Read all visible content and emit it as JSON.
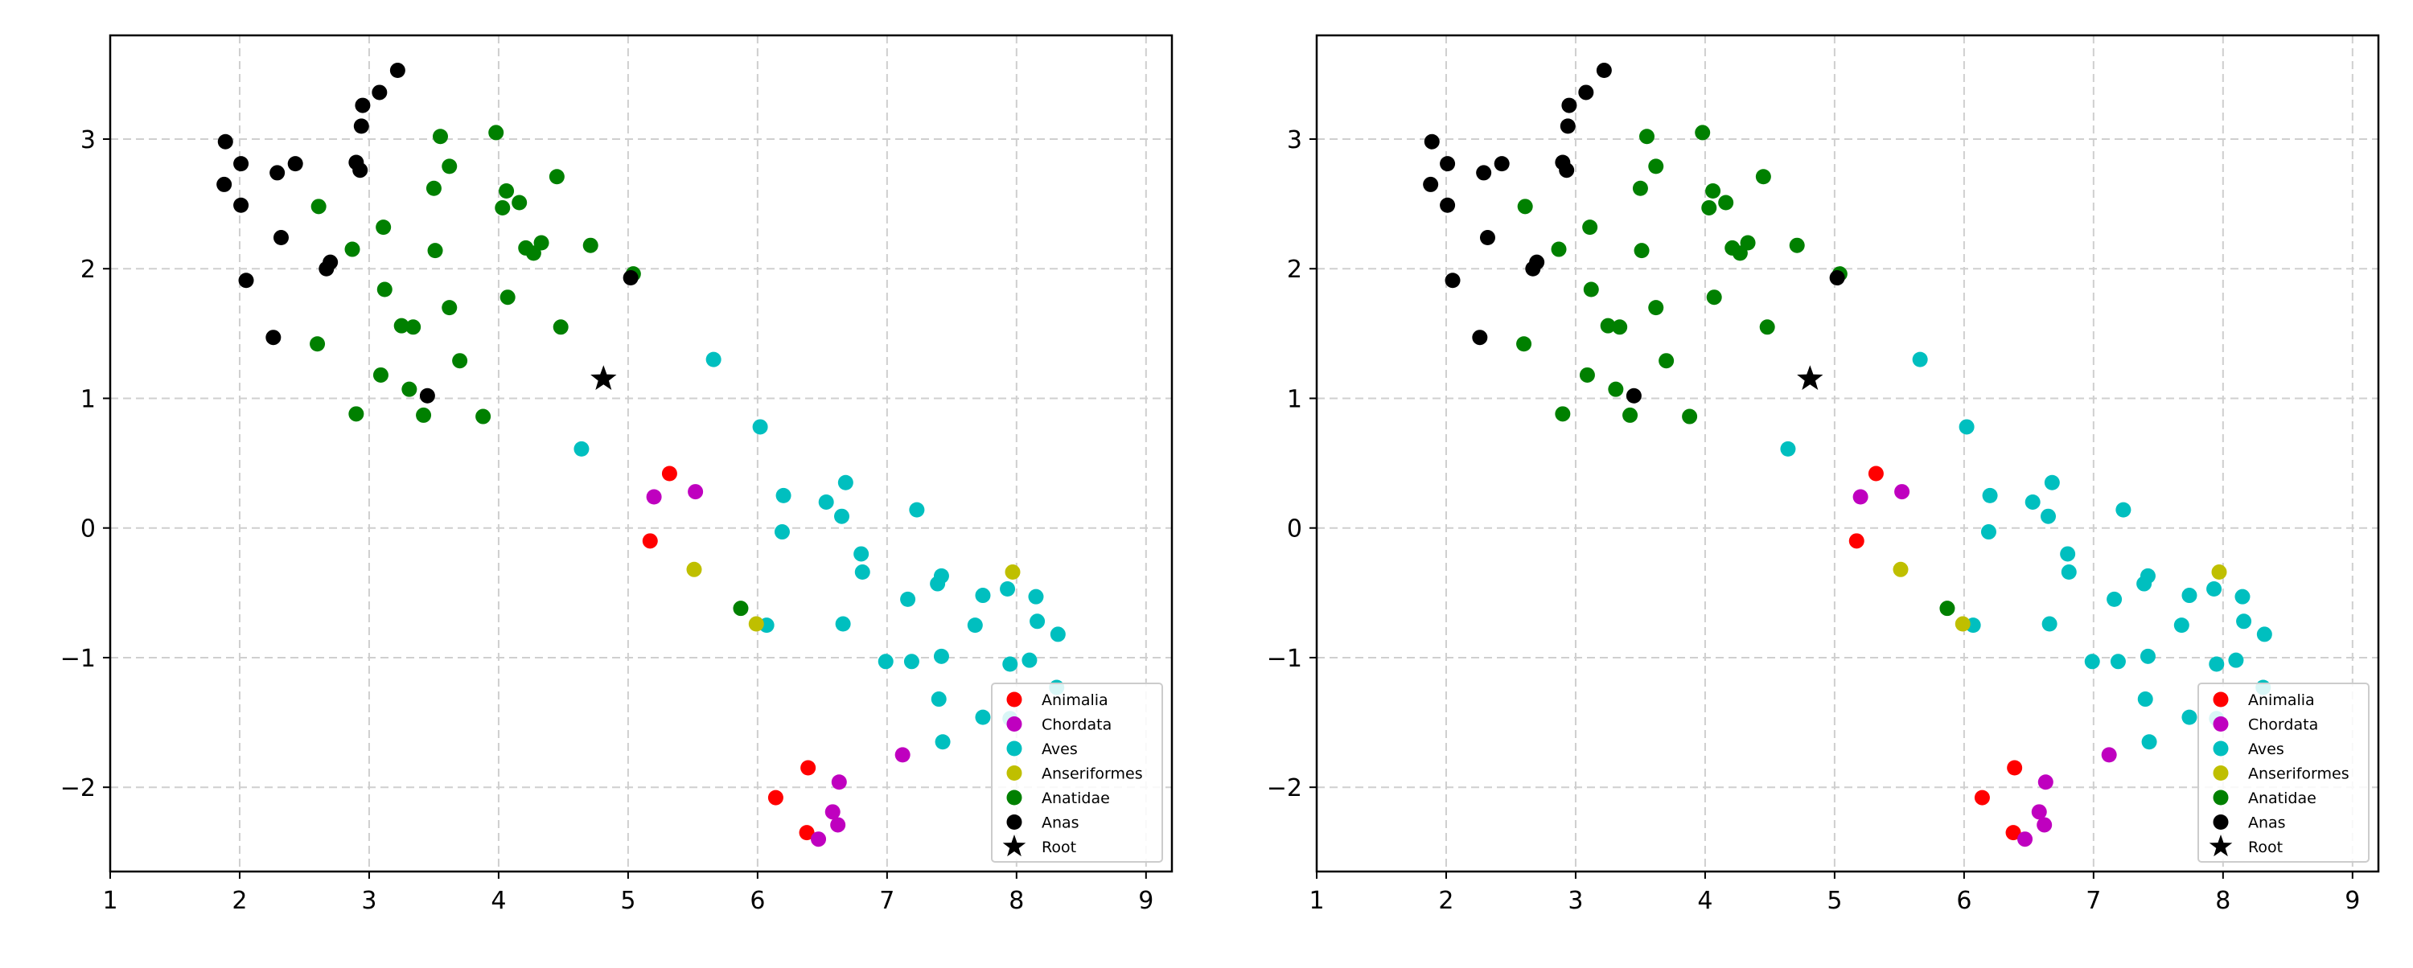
{
  "chart_data": [
    {
      "type": "scatter",
      "xlim": [
        1,
        9.2
      ],
      "ylim": [
        -2.65,
        3.8
      ],
      "xticks": [
        1,
        2,
        3,
        4,
        5,
        6,
        7,
        8,
        9
      ],
      "yticks": [
        -2,
        -1,
        0,
        1,
        2,
        3
      ],
      "grid": true,
      "legend_position": "lower-right",
      "series": [
        {
          "name": "Animalia",
          "color": "#ff0000",
          "marker": "circle",
          "points": [
            [
              5.32,
              0.42
            ],
            [
              5.17,
              -0.1
            ],
            [
              6.14,
              -2.08
            ],
            [
              6.39,
              -1.85
            ],
            [
              6.38,
              -2.35
            ]
          ]
        },
        {
          "name": "Chordata",
          "color": "#bf00bf",
          "marker": "circle",
          "points": [
            [
              5.2,
              0.24
            ],
            [
              5.52,
              0.28
            ],
            [
              6.63,
              -1.96
            ],
            [
              6.58,
              -2.19
            ],
            [
              6.62,
              -2.29
            ],
            [
              6.47,
              -2.4
            ],
            [
              7.12,
              -1.75
            ]
          ]
        },
        {
          "name": "Aves",
          "color": "#00bfbf",
          "marker": "circle",
          "points": [
            [
              5.66,
              1.3
            ],
            [
              4.64,
              0.61
            ],
            [
              6.02,
              0.78
            ],
            [
              6.2,
              0.25
            ],
            [
              6.19,
              -0.03
            ],
            [
              6.53,
              0.2
            ],
            [
              6.68,
              0.35
            ],
            [
              6.65,
              0.09
            ],
            [
              6.8,
              -0.2
            ],
            [
              6.81,
              -0.34
            ],
            [
              7.23,
              0.14
            ],
            [
              7.42,
              -0.37
            ],
            [
              7.39,
              -0.43
            ],
            [
              7.16,
              -0.55
            ],
            [
              6.07,
              -0.75
            ],
            [
              6.66,
              -0.74
            ],
            [
              6.99,
              -1.03
            ],
            [
              7.19,
              -1.03
            ],
            [
              7.42,
              -0.99
            ],
            [
              7.4,
              -1.32
            ],
            [
              7.43,
              -1.65
            ],
            [
              7.74,
              -0.52
            ],
            [
              7.93,
              -0.47
            ],
            [
              8.15,
              -0.53
            ],
            [
              7.68,
              -0.75
            ],
            [
              8.16,
              -0.72
            ],
            [
              8.32,
              -0.82
            ],
            [
              7.95,
              -1.05
            ],
            [
              8.1,
              -1.02
            ],
            [
              8.31,
              -1.23
            ],
            [
              7.74,
              -1.46
            ],
            [
              7.95,
              -1.47
            ]
          ]
        },
        {
          "name": "Anseriformes",
          "color": "#bfbf00",
          "marker": "circle",
          "points": [
            [
              5.51,
              -0.32
            ],
            [
              5.99,
              -0.74
            ],
            [
              7.97,
              -0.34
            ]
          ]
        },
        {
          "name": "Anatidae",
          "color": "#008000",
          "marker": "circle",
          "points": [
            [
              3.55,
              3.02
            ],
            [
              3.98,
              3.05
            ],
            [
              3.62,
              2.79
            ],
            [
              3.5,
              2.62
            ],
            [
              4.06,
              2.6
            ],
            [
              4.03,
              2.47
            ],
            [
              4.16,
              2.51
            ],
            [
              4.45,
              2.71
            ],
            [
              2.61,
              2.48
            ],
            [
              3.11,
              2.32
            ],
            [
              2.87,
              2.15
            ],
            [
              3.51,
              2.14
            ],
            [
              4.21,
              2.16
            ],
            [
              4.27,
              2.12
            ],
            [
              4.33,
              2.2
            ],
            [
              4.71,
              2.18
            ],
            [
              5.04,
              1.96
            ],
            [
              3.12,
              1.84
            ],
            [
              4.07,
              1.78
            ],
            [
              3.62,
              1.7
            ],
            [
              3.25,
              1.56
            ],
            [
              3.34,
              1.55
            ],
            [
              4.48,
              1.55
            ],
            [
              2.6,
              1.42
            ],
            [
              3.09,
              1.18
            ],
            [
              3.7,
              1.29
            ],
            [
              3.31,
              1.07
            ],
            [
              2.9,
              0.88
            ],
            [
              3.42,
              0.87
            ],
            [
              3.88,
              0.86
            ],
            [
              5.87,
              -0.62
            ]
          ]
        },
        {
          "name": "Anas",
          "color": "#000000",
          "marker": "circle",
          "points": [
            [
              3.22,
              3.53
            ],
            [
              3.08,
              3.36
            ],
            [
              2.95,
              3.26
            ],
            [
              2.94,
              3.1
            ],
            [
              1.89,
              2.98
            ],
            [
              2.01,
              2.81
            ],
            [
              2.43,
              2.81
            ],
            [
              2.29,
              2.74
            ],
            [
              2.9,
              2.82
            ],
            [
              2.93,
              2.76
            ],
            [
              1.88,
              2.65
            ],
            [
              2.01,
              2.49
            ],
            [
              2.32,
              2.24
            ],
            [
              2.7,
              2.05
            ],
            [
              2.67,
              2.0
            ],
            [
              2.05,
              1.91
            ],
            [
              5.02,
              1.93
            ],
            [
              2.26,
              1.47
            ],
            [
              3.45,
              1.02
            ]
          ]
        },
        {
          "name": "Root",
          "color": "#000000",
          "marker": "star",
          "points": [
            [
              4.81,
              1.15
            ]
          ]
        }
      ]
    },
    {
      "type": "scatter",
      "xlim": [
        1,
        9.2
      ],
      "ylim": [
        -2.65,
        3.8
      ],
      "xticks": [
        1,
        2,
        3,
        4,
        5,
        6,
        7,
        8,
        9
      ],
      "yticks": [
        -2,
        -1,
        0,
        1,
        2,
        3
      ],
      "grid": true,
      "legend_position": "lower-right",
      "series": [
        {
          "name": "Animalia",
          "color": "#ff0000",
          "marker": "circle",
          "points": [
            [
              5.32,
              0.42
            ],
            [
              5.17,
              -0.1
            ],
            [
              6.14,
              -2.08
            ],
            [
              6.39,
              -1.85
            ],
            [
              6.38,
              -2.35
            ]
          ]
        },
        {
          "name": "Chordata",
          "color": "#bf00bf",
          "marker": "circle",
          "points": [
            [
              5.2,
              0.24
            ],
            [
              5.52,
              0.28
            ],
            [
              6.63,
              -1.96
            ],
            [
              6.58,
              -2.19
            ],
            [
              6.62,
              -2.29
            ],
            [
              6.47,
              -2.4
            ],
            [
              7.12,
              -1.75
            ]
          ]
        },
        {
          "name": "Aves",
          "color": "#00bfbf",
          "marker": "circle",
          "points": [
            [
              5.66,
              1.3
            ],
            [
              4.64,
              0.61
            ],
            [
              6.02,
              0.78
            ],
            [
              6.2,
              0.25
            ],
            [
              6.19,
              -0.03
            ],
            [
              6.53,
              0.2
            ],
            [
              6.68,
              0.35
            ],
            [
              6.65,
              0.09
            ],
            [
              6.8,
              -0.2
            ],
            [
              6.81,
              -0.34
            ],
            [
              7.23,
              0.14
            ],
            [
              7.42,
              -0.37
            ],
            [
              7.39,
              -0.43
            ],
            [
              7.16,
              -0.55
            ],
            [
              6.07,
              -0.75
            ],
            [
              6.66,
              -0.74
            ],
            [
              6.99,
              -1.03
            ],
            [
              7.19,
              -1.03
            ],
            [
              7.42,
              -0.99
            ],
            [
              7.4,
              -1.32
            ],
            [
              7.43,
              -1.65
            ],
            [
              7.74,
              -0.52
            ],
            [
              7.93,
              -0.47
            ],
            [
              8.15,
              -0.53
            ],
            [
              7.68,
              -0.75
            ],
            [
              8.16,
              -0.72
            ],
            [
              8.32,
              -0.82
            ],
            [
              7.95,
              -1.05
            ],
            [
              8.1,
              -1.02
            ],
            [
              8.31,
              -1.23
            ],
            [
              7.74,
              -1.46
            ],
            [
              7.95,
              -1.47
            ]
          ]
        },
        {
          "name": "Anseriformes",
          "color": "#bfbf00",
          "marker": "circle",
          "points": [
            [
              5.51,
              -0.32
            ],
            [
              5.99,
              -0.74
            ],
            [
              7.97,
              -0.34
            ]
          ]
        },
        {
          "name": "Anatidae",
          "color": "#008000",
          "marker": "circle",
          "points": [
            [
              3.55,
              3.02
            ],
            [
              3.98,
              3.05
            ],
            [
              3.62,
              2.79
            ],
            [
              3.5,
              2.62
            ],
            [
              4.06,
              2.6
            ],
            [
              4.03,
              2.47
            ],
            [
              4.16,
              2.51
            ],
            [
              4.45,
              2.71
            ],
            [
              2.61,
              2.48
            ],
            [
              3.11,
              2.32
            ],
            [
              2.87,
              2.15
            ],
            [
              3.51,
              2.14
            ],
            [
              4.21,
              2.16
            ],
            [
              4.27,
              2.12
            ],
            [
              4.33,
              2.2
            ],
            [
              4.71,
              2.18
            ],
            [
              5.04,
              1.96
            ],
            [
              3.12,
              1.84
            ],
            [
              4.07,
              1.78
            ],
            [
              3.62,
              1.7
            ],
            [
              3.25,
              1.56
            ],
            [
              3.34,
              1.55
            ],
            [
              4.48,
              1.55
            ],
            [
              2.6,
              1.42
            ],
            [
              3.09,
              1.18
            ],
            [
              3.7,
              1.29
            ],
            [
              3.31,
              1.07
            ],
            [
              2.9,
              0.88
            ],
            [
              3.42,
              0.87
            ],
            [
              3.88,
              0.86
            ],
            [
              5.87,
              -0.62
            ]
          ]
        },
        {
          "name": "Anas",
          "color": "#000000",
          "marker": "circle",
          "points": [
            [
              3.22,
              3.53
            ],
            [
              3.08,
              3.36
            ],
            [
              2.95,
              3.26
            ],
            [
              2.94,
              3.1
            ],
            [
              1.89,
              2.98
            ],
            [
              2.01,
              2.81
            ],
            [
              2.43,
              2.81
            ],
            [
              2.29,
              2.74
            ],
            [
              2.9,
              2.82
            ],
            [
              2.93,
              2.76
            ],
            [
              1.88,
              2.65
            ],
            [
              2.01,
              2.49
            ],
            [
              2.32,
              2.24
            ],
            [
              2.7,
              2.05
            ],
            [
              2.67,
              2.0
            ],
            [
              2.05,
              1.91
            ],
            [
              5.02,
              1.93
            ],
            [
              2.26,
              1.47
            ],
            [
              3.45,
              1.02
            ]
          ]
        },
        {
          "name": "Root",
          "color": "#000000",
          "marker": "star",
          "points": [
            [
              4.81,
              1.15
            ]
          ]
        }
      ]
    }
  ]
}
